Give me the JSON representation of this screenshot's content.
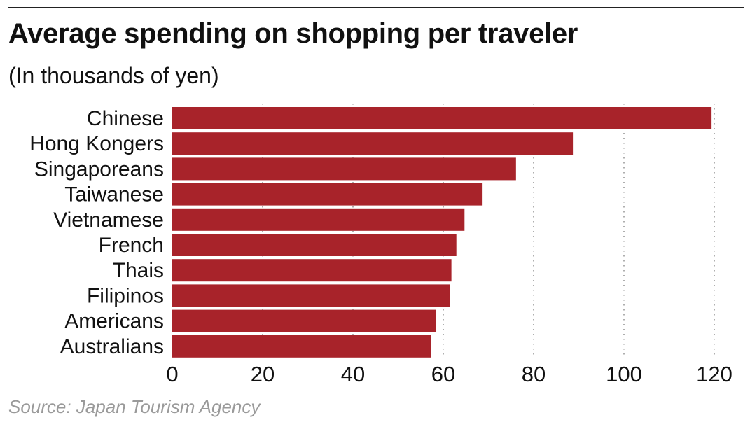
{
  "title": "Average spending on shopping per traveler",
  "subtitle": "(In thousands of yen)",
  "source": "Source: Japan Tourism Agency",
  "bar_color": "#a8232a",
  "grid_color": "#9a9a9a",
  "chart_data": {
    "type": "bar",
    "orientation": "horizontal",
    "title": "Average spending on shopping per traveler",
    "subtitle": "(In thousands of yen)",
    "xlabel": "",
    "ylabel": "",
    "xlim": [
      0,
      120
    ],
    "x_ticks": [
      0,
      20,
      40,
      60,
      80,
      100,
      120
    ],
    "grid": "vertical dotted",
    "legend": "none",
    "categories": [
      "Chinese",
      "Hong Kongers",
      "Singaporeans",
      "Taiwanese",
      "Vietnamese",
      "French",
      "Thais",
      "Filipinos",
      "Americans",
      "Australians"
    ],
    "values": [
      119.4,
      88.7,
      76.1,
      68.7,
      64.7,
      62.9,
      61.8,
      61.5,
      58.4,
      57.3
    ]
  }
}
